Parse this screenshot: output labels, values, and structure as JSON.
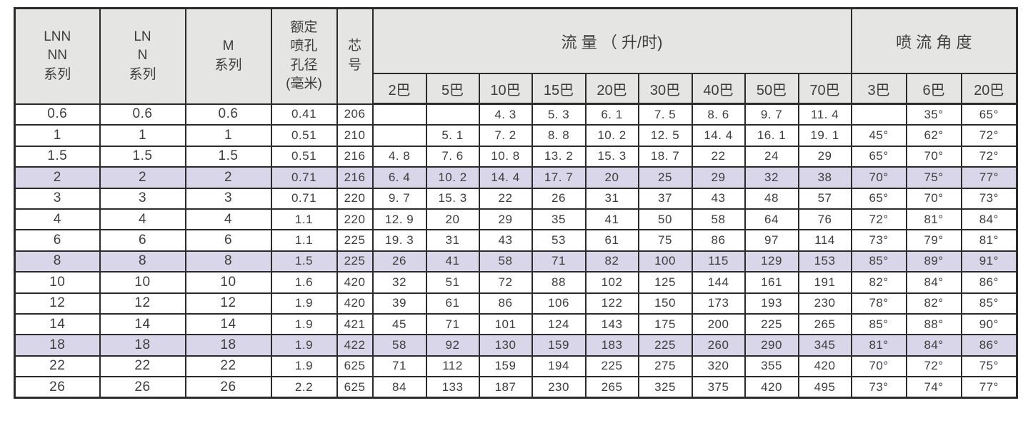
{
  "table": {
    "columns": [
      {
        "label": "LNN\nNN\n系列"
      },
      {
        "label": "LN\nN\n系列"
      },
      {
        "label": "M\n系列"
      },
      {
        "label": "额定\n喷孔\n孔径\n(毫米)"
      },
      {
        "label": "芯\n号"
      }
    ],
    "flow_group_label": "流 量 （ 升/时)",
    "angle_group_label": "喷 流 角 度",
    "flow_pressures": [
      "2巴",
      "5巴",
      "10巴",
      "15巴",
      "20巴",
      "30巴",
      "40巴",
      "50巴",
      "70巴"
    ],
    "angle_pressures": [
      "3巴",
      "6巴",
      "20巴"
    ],
    "rows": [
      {
        "lnn_nn": "0.6",
        "ln_n": "0.6",
        "m": "0.6",
        "diameter": "0.41",
        "core": "206",
        "flows": [
          "",
          "",
          "4. 3",
          "5. 3",
          "6. 1",
          "7. 5",
          "8. 6",
          "9. 7",
          "11. 4"
        ],
        "angles": [
          "",
          "35°",
          "65°"
        ],
        "highlight": false
      },
      {
        "lnn_nn": "1",
        "ln_n": "1",
        "m": "1",
        "diameter": "0.51",
        "core": "210",
        "flows": [
          "",
          "5. 1",
          "7. 2",
          "8. 8",
          "10. 2",
          "12. 5",
          "14. 4",
          "16. 1",
          "19. 1"
        ],
        "angles": [
          "45°",
          "62°",
          "72°"
        ],
        "highlight": false
      },
      {
        "lnn_nn": "1.5",
        "ln_n": "1.5",
        "m": "1.5",
        "diameter": "0.51",
        "core": "216",
        "flows": [
          "4. 8",
          "7. 6",
          "10. 8",
          "13. 2",
          "15. 3",
          "18. 7",
          "22",
          "24",
          "29"
        ],
        "angles": [
          "65°",
          "70°",
          "72°"
        ],
        "highlight": false
      },
      {
        "lnn_nn": "2",
        "ln_n": "2",
        "m": "2",
        "diameter": "0.71",
        "core": "216",
        "flows": [
          "6. 4",
          "10. 2",
          "14. 4",
          "17. 7",
          "20",
          "25",
          "29",
          "32",
          "38"
        ],
        "angles": [
          "70°",
          "75°",
          "77°"
        ],
        "highlight": true
      },
      {
        "lnn_nn": "3",
        "ln_n": "3",
        "m": "3",
        "diameter": "0.71",
        "core": "220",
        "flows": [
          "9. 7",
          "15. 3",
          "22",
          "26",
          "31",
          "37",
          "43",
          "48",
          "57"
        ],
        "angles": [
          "65°",
          "70°",
          "73°"
        ],
        "highlight": false
      },
      {
        "lnn_nn": "4",
        "ln_n": "4",
        "m": "4",
        "diameter": "1.1",
        "core": "220",
        "flows": [
          "12. 9",
          "20",
          "29",
          "35",
          "41",
          "50",
          "58",
          "64",
          "76"
        ],
        "angles": [
          "72°",
          "81°",
          "84°"
        ],
        "highlight": false
      },
      {
        "lnn_nn": "6",
        "ln_n": "6",
        "m": "6",
        "diameter": "1.1",
        "core": "225",
        "flows": [
          "19. 3",
          "31",
          "43",
          "53",
          "61",
          "75",
          "86",
          "97",
          "114"
        ],
        "angles": [
          "73°",
          "79°",
          "81°"
        ],
        "highlight": false
      },
      {
        "lnn_nn": "8",
        "ln_n": "8",
        "m": "8",
        "diameter": "1.5",
        "core": "225",
        "flows": [
          "26",
          "41",
          "58",
          "71",
          "82",
          "100",
          "115",
          "129",
          "153"
        ],
        "angles": [
          "85°",
          "89°",
          "91°"
        ],
        "highlight": true
      },
      {
        "lnn_nn": "10",
        "ln_n": "10",
        "m": "10",
        "diameter": "1.6",
        "core": "420",
        "flows": [
          "32",
          "51",
          "72",
          "88",
          "102",
          "125",
          "144",
          "161",
          "191"
        ],
        "angles": [
          "82°",
          "84°",
          "86°"
        ],
        "highlight": false
      },
      {
        "lnn_nn": "12",
        "ln_n": "12",
        "m": "12",
        "diameter": "1.9",
        "core": "420",
        "flows": [
          "39",
          "61",
          "86",
          "106",
          "122",
          "150",
          "173",
          "193",
          "230"
        ],
        "angles": [
          "78°",
          "82°",
          "85°"
        ],
        "highlight": false
      },
      {
        "lnn_nn": "14",
        "ln_n": "14",
        "m": "14",
        "diameter": "1.9",
        "core": "421",
        "flows": [
          "45",
          "71",
          "101",
          "124",
          "143",
          "175",
          "200",
          "225",
          "265"
        ],
        "angles": [
          "85°",
          "88°",
          "90°"
        ],
        "highlight": false
      },
      {
        "lnn_nn": "18",
        "ln_n": "18",
        "m": "18",
        "diameter": "1.9",
        "core": "422",
        "flows": [
          "58",
          "92",
          "130",
          "159",
          "183",
          "225",
          "260",
          "290",
          "345"
        ],
        "angles": [
          "81°",
          "84°",
          "86°"
        ],
        "highlight": true
      },
      {
        "lnn_nn": "22",
        "ln_n": "22",
        "m": "22",
        "diameter": "1.9",
        "core": "625",
        "flows": [
          "71",
          "112",
          "159",
          "194",
          "225",
          "275",
          "320",
          "355",
          "420"
        ],
        "angles": [
          "70°",
          "72°",
          "75°"
        ],
        "highlight": false
      },
      {
        "lnn_nn": "26",
        "ln_n": "26",
        "m": "26",
        "diameter": "2.2",
        "core": "625",
        "flows": [
          "84",
          "133",
          "187",
          "230",
          "265",
          "325",
          "375",
          "420",
          "495"
        ],
        "angles": [
          "73°",
          "74°",
          "77°"
        ],
        "highlight": false
      }
    ],
    "colors": {
      "header_bg": "#e5e6e3",
      "highlight_row_bg": "#d9d6e9",
      "border": "#2b2b2b",
      "text": "#3d3d3d",
      "page_bg": "#ffffff"
    }
  }
}
